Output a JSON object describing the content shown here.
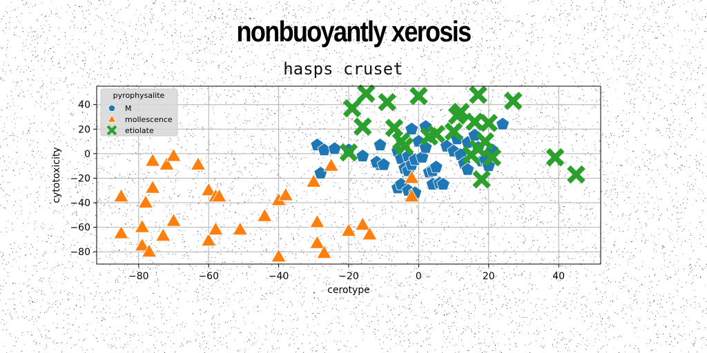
{
  "page": {
    "title": "nonbuoyantly xerosis",
    "subtitle": "hasps cruset"
  },
  "colors": {
    "M": "#1f77b4",
    "mollescence": "#ff7f0e",
    "etiolate": "#2ca02c",
    "grid": "#b0b0b0"
  },
  "chart_data": {
    "type": "scatter",
    "title": "hasps cruset",
    "xlabel": "cerotype",
    "ylabel": "cytotoxicity",
    "xlim": [
      -92,
      52
    ],
    "ylim": [
      -90,
      55
    ],
    "xticks": [
      -80,
      -60,
      -40,
      -20,
      0,
      20,
      40
    ],
    "yticks": [
      -80,
      -60,
      -40,
      -20,
      0,
      20,
      40
    ],
    "xtick_labels": [
      "−80",
      "−60",
      "−40",
      "−20",
      "0",
      "20",
      "40"
    ],
    "ytick_labels": [
      "−80",
      "−60",
      "−40",
      "−20",
      "0",
      "20",
      "40"
    ],
    "grid": true,
    "legend": {
      "title": "pyrophysalite",
      "placement": "top-left"
    },
    "series": [
      {
        "name": "M",
        "marker": "pentagon",
        "points": [
          [
            -29,
            7
          ],
          [
            -27,
            3
          ],
          [
            -28,
            -16
          ],
          [
            -24,
            4
          ],
          [
            -20,
            3
          ],
          [
            -16,
            -2
          ],
          [
            -11,
            -9
          ],
          [
            -11,
            7
          ],
          [
            -12,
            -7
          ],
          [
            -10,
            -9
          ],
          [
            -6,
            -28
          ],
          [
            -6,
            2
          ],
          [
            -5,
            -4
          ],
          [
            -4,
            -12
          ],
          [
            -5,
            -25
          ],
          [
            -3,
            -14
          ],
          [
            -3,
            -2
          ],
          [
            -3,
            -30
          ],
          [
            -2,
            -9
          ],
          [
            -2,
            20
          ],
          [
            -1,
            -32
          ],
          [
            -1,
            -5
          ],
          [
            0,
            10
          ],
          [
            1,
            -3
          ],
          [
            2,
            22
          ],
          [
            2,
            5
          ],
          [
            3,
            -15
          ],
          [
            4,
            -25
          ],
          [
            4,
            -14
          ],
          [
            5,
            -11
          ],
          [
            6,
            -24
          ],
          [
            7,
            -25
          ],
          [
            8,
            6
          ],
          [
            10,
            2
          ],
          [
            11,
            12
          ],
          [
            12,
            -1
          ],
          [
            13,
            -8
          ],
          [
            14,
            9
          ],
          [
            14,
            -13
          ],
          [
            16,
            15
          ],
          [
            17,
            5
          ],
          [
            18,
            -6
          ],
          [
            19,
            -5
          ],
          [
            20,
            -10
          ],
          [
            21,
            3
          ],
          [
            24,
            24
          ]
        ]
      },
      {
        "name": "mollescence",
        "marker": "triangle",
        "points": [
          [
            -85,
            -35
          ],
          [
            -85,
            -65
          ],
          [
            -79,
            -75
          ],
          [
            -79,
            -60
          ],
          [
            -78,
            -40
          ],
          [
            -77,
            -80
          ],
          [
            -76,
            -28
          ],
          [
            -76,
            -6
          ],
          [
            -73,
            -67
          ],
          [
            -72,
            -9
          ],
          [
            -70,
            -2
          ],
          [
            -70,
            -55
          ],
          [
            -63,
            -9
          ],
          [
            -60,
            -30
          ],
          [
            -60,
            -71
          ],
          [
            -58,
            -35
          ],
          [
            -58,
            -62
          ],
          [
            -57,
            -35
          ],
          [
            -51,
            -62
          ],
          [
            -44,
            -51
          ],
          [
            -40,
            -38
          ],
          [
            -40,
            -84
          ],
          [
            -38,
            -34
          ],
          [
            -30,
            -23
          ],
          [
            -29,
            -73
          ],
          [
            -29,
            -56
          ],
          [
            -27,
            -81
          ],
          [
            -25,
            -10
          ],
          [
            -20,
            -63
          ],
          [
            -16,
            -58
          ],
          [
            -14,
            -66
          ],
          [
            -2,
            -20
          ],
          [
            -2,
            -35
          ]
        ]
      },
      {
        "name": "etiolate",
        "marker": "x",
        "points": [
          [
            -19,
            37
          ],
          [
            -20,
            1
          ],
          [
            -16,
            22
          ],
          [
            -15,
            49
          ],
          [
            -9,
            42
          ],
          [
            -7,
            21
          ],
          [
            -5,
            10
          ],
          [
            -4,
            6
          ],
          [
            0,
            47
          ],
          [
            3,
            14
          ],
          [
            5,
            16
          ],
          [
            10,
            18
          ],
          [
            11,
            31
          ],
          [
            12,
            34
          ],
          [
            15,
            -1
          ],
          [
            16,
            26
          ],
          [
            17,
            48
          ],
          [
            17,
            4
          ],
          [
            18,
            -21
          ],
          [
            19,
            10
          ],
          [
            20,
            25
          ],
          [
            21,
            -3
          ],
          [
            27,
            43
          ],
          [
            39,
            -3
          ],
          [
            45,
            -17
          ]
        ]
      }
    ]
  }
}
